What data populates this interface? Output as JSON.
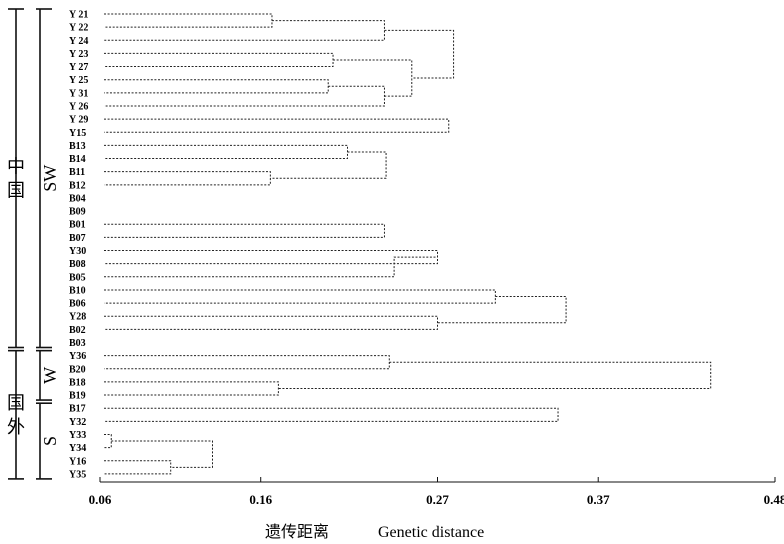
{
  "chart_data": {
    "type": "dendrogram",
    "xlabel_cn": "遗传距离",
    "xlabel_en": "Genetic distance",
    "xlim": [
      0.06,
      0.48
    ],
    "xticks": [
      "0.06",
      "0.16",
      "0.27",
      "0.37",
      "0.48"
    ],
    "leaves": [
      "Y 21",
      "Y 22",
      "Y 24",
      "Y 23",
      "Y 27",
      "Y 25",
      "Y 31",
      "Y 26",
      "Y 29",
      "Y15",
      "B13",
      "B14",
      "B11",
      "B12",
      "B04",
      "B09",
      "B01",
      "B07",
      "Y30",
      "B08",
      "B05",
      "B10",
      "B06",
      "Y28",
      "B02",
      "B03",
      "Y36",
      "B20",
      "B18",
      "B19",
      "B17",
      "Y32",
      "Y33",
      "Y34",
      "Y16",
      "Y35"
    ],
    "merges": [
      {
        "a": "Y 21",
        "b": "Y 22",
        "height": 0.167
      },
      {
        "a": "Y 23",
        "b": "Y 27",
        "height": 0.205
      },
      {
        "a": "Y 25",
        "b": "Y 31",
        "height": 0.202
      },
      {
        "a": "Y 21+Y 22",
        "b": "Y 24",
        "height": 0.237
      },
      {
        "a": "Y 25+Y 31",
        "b": "Y 26",
        "height": 0.237
      },
      {
        "a": "Y 23+Y 27",
        "b": "Y 25+Y 31+Y 26",
        "height": 0.254
      },
      {
        "a": "Y 21+Y 22+Y 24",
        "b": "Y 23+Y 27+Y 25+Y 31+Y 26",
        "height": 0.28
      },
      {
        "a": "Y 29",
        "b": "Y15",
        "height": 0.277
      },
      {
        "a": "Y-cluster",
        "b": "Y 29+Y15",
        "height": 0.293
      },
      {
        "a": "B13",
        "b": "B14",
        "height": 0.214
      },
      {
        "a": "B11",
        "b": "B12",
        "height": 0.166
      },
      {
        "a": "B13+B14",
        "b": "B11+B12",
        "height": 0.238
      },
      {
        "a": "(B13,B14,B11,B12)",
        "b": "B04",
        "height": 0.258
      },
      {
        "a": "(B13,B14,B11,B12,B04)",
        "b": "B09",
        "height": 0.268
      },
      {
        "a": "Y-group",
        "b": "B-group",
        "height": 0.304
      },
      {
        "a": "B01",
        "b": "B07",
        "height": 0.237
      },
      {
        "a": "Y30",
        "b": "B08",
        "height": 0.27
      },
      {
        "a": "B05",
        "b": "Y30+B08",
        "height": 0.243
      },
      {
        "a": "B01+B07",
        "b": "(Y30,B08,B05)",
        "height": 0.281
      },
      {
        "a": "B10",
        "b": "B06",
        "height": 0.306
      },
      {
        "a": "Y28",
        "b": "B02",
        "height": 0.27
      },
      {
        "a": "B10+B06",
        "b": "Y28+B02",
        "height": 0.35
      },
      {
        "a": "B03",
        "b": "SW-main",
        "height": 0.355
      },
      {
        "a": "SW",
        "b": "W",
        "height": 0.4
      },
      {
        "a": "Y36",
        "b": "B20",
        "height": 0.24
      },
      {
        "a": "B18",
        "b": "B19",
        "height": 0.171
      },
      {
        "a": "Y36+B20",
        "b": "B18+B19",
        "height": 0.44
      },
      {
        "a": "B17",
        "b": "Y32",
        "height": 0.345
      },
      {
        "a": "Y33",
        "b": "Y34",
        "height": 0.067
      },
      {
        "a": "Y16",
        "b": "Y35",
        "height": 0.104
      },
      {
        "a": "Y33+Y34",
        "b": "Y16+Y35",
        "height": 0.13
      },
      {
        "a": "B17+Y32",
        "b": "(Y33,Y34,Y16,Y35)",
        "height": 0.345
      },
      {
        "a": "SW+W",
        "b": "S",
        "height": 0.48
      }
    ],
    "groups": [
      {
        "region_label": "中国",
        "clade_label": "SW",
        "first_leaf": "Y 21",
        "last_leaf": "B03"
      },
      {
        "region_label": "国外",
        "clade_label": "W",
        "first_leaf": "Y36",
        "last_leaf": "B19"
      },
      {
        "region_label": "",
        "clade_label": "S",
        "first_leaf": "B17",
        "last_leaf": "Y35"
      }
    ]
  }
}
